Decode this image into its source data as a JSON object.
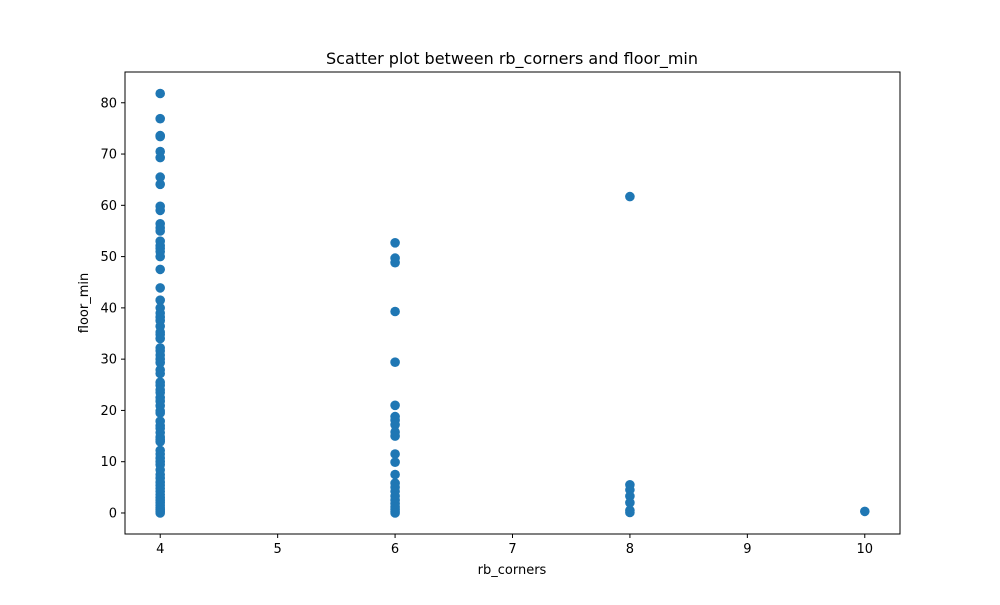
{
  "chart_data": {
    "type": "scatter",
    "title": "Scatter plot between rb_corners and floor_min",
    "xlabel": "rb_corners",
    "ylabel": "floor_min",
    "xlim": [
      3.7,
      10.3
    ],
    "ylim": [
      -4.1,
      86.0
    ],
    "xticks": [
      "4",
      "5",
      "6",
      "7",
      "8",
      "9",
      "10"
    ],
    "yticks": [
      "0",
      "10",
      "20",
      "30",
      "40",
      "50",
      "60",
      "70",
      "80"
    ],
    "grid": false,
    "legend": "none",
    "marker_color": "#1f77b4",
    "points": [
      [
        4,
        81.8
      ],
      [
        4,
        76.9
      ],
      [
        4,
        73.6
      ],
      [
        4,
        73.4
      ],
      [
        4,
        70.5
      ],
      [
        4,
        69.3
      ],
      [
        4,
        65.5
      ],
      [
        4,
        64.1
      ],
      [
        4,
        59.8
      ],
      [
        4,
        59.0
      ],
      [
        4,
        56.4
      ],
      [
        4,
        55.6
      ],
      [
        4,
        55.0
      ],
      [
        4,
        53.0
      ],
      [
        4,
        52.1
      ],
      [
        4,
        51.6
      ],
      [
        4,
        51.0
      ],
      [
        4,
        50.0
      ],
      [
        4,
        47.5
      ],
      [
        4,
        43.9
      ],
      [
        4,
        41.5
      ],
      [
        4,
        40.0
      ],
      [
        4,
        39.0
      ],
      [
        4,
        38.2
      ],
      [
        4,
        37.5
      ],
      [
        4,
        36.4
      ],
      [
        4,
        35.3
      ],
      [
        4,
        34.8
      ],
      [
        4,
        34.0
      ],
      [
        4,
        32.2
      ],
      [
        4,
        31.6
      ],
      [
        4,
        30.8
      ],
      [
        4,
        30.0
      ],
      [
        4,
        29.3
      ],
      [
        4,
        27.9
      ],
      [
        4,
        27.2
      ],
      [
        4,
        25.5
      ],
      [
        4,
        24.9
      ],
      [
        4,
        24.0
      ],
      [
        4,
        23.5
      ],
      [
        4,
        22.5
      ],
      [
        4,
        21.8
      ],
      [
        4,
        20.9
      ],
      [
        4,
        19.9
      ],
      [
        4,
        19.5
      ],
      [
        4,
        17.9
      ],
      [
        4,
        17.0
      ],
      [
        4,
        16.5
      ],
      [
        4,
        15.7
      ],
      [
        4,
        14.8
      ],
      [
        4,
        14.3
      ],
      [
        4,
        13.9
      ],
      [
        4,
        12.2
      ],
      [
        4,
        11.5
      ],
      [
        4,
        10.7
      ],
      [
        4,
        10.0
      ],
      [
        4,
        9.4
      ],
      [
        4,
        8.4
      ],
      [
        4,
        7.5
      ],
      [
        4,
        6.8
      ],
      [
        4,
        6.0
      ],
      [
        4,
        5.4
      ],
      [
        4,
        4.8
      ],
      [
        4,
        4.2
      ],
      [
        4,
        3.6
      ],
      [
        4,
        3.0
      ],
      [
        4,
        2.5
      ],
      [
        4,
        2.0
      ],
      [
        4,
        1.5
      ],
      [
        4,
        1.0
      ],
      [
        4,
        0.6
      ],
      [
        4,
        0.3
      ],
      [
        4,
        0.0
      ],
      [
        6,
        52.7
      ],
      [
        6,
        49.7
      ],
      [
        6,
        48.8
      ],
      [
        6,
        39.3
      ],
      [
        6,
        29.4
      ],
      [
        6,
        21.0
      ],
      [
        6,
        18.8
      ],
      [
        6,
        18.1
      ],
      [
        6,
        17.2
      ],
      [
        6,
        15.8
      ],
      [
        6,
        15.0
      ],
      [
        6,
        11.5
      ],
      [
        6,
        9.9
      ],
      [
        6,
        7.5
      ],
      [
        6,
        5.8
      ],
      [
        6,
        5.0
      ],
      [
        6,
        4.2
      ],
      [
        6,
        3.3
      ],
      [
        6,
        2.5
      ],
      [
        6,
        1.8
      ],
      [
        6,
        1.2
      ],
      [
        6,
        0.7
      ],
      [
        6,
        0.3
      ],
      [
        6,
        0.0
      ],
      [
        8,
        61.7
      ],
      [
        8,
        5.5
      ],
      [
        8,
        4.5
      ],
      [
        8,
        3.3
      ],
      [
        8,
        2.0
      ],
      [
        8,
        0.5
      ],
      [
        8,
        0.1
      ],
      [
        10,
        0.3
      ]
    ]
  }
}
